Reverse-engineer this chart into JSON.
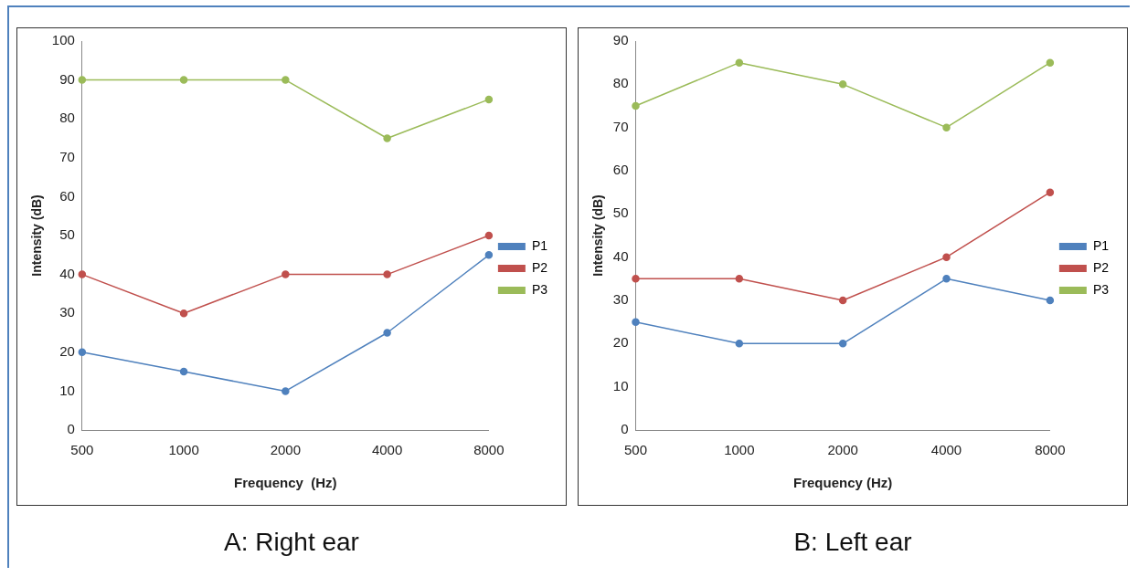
{
  "chart_data": [
    {
      "type": "line",
      "title": "A: Right ear",
      "xlabel": "Frequency  (Hz)",
      "ylabel": "Intensity (dB)",
      "categories": [
        "500",
        "1000",
        "2000",
        "4000",
        "8000"
      ],
      "series": [
        {
          "name": "P1",
          "color": "#4f81bd",
          "values": [
            20,
            15,
            10,
            25,
            45
          ]
        },
        {
          "name": "P2",
          "color": "#c0504d",
          "values": [
            40,
            30,
            40,
            40,
            50
          ]
        },
        {
          "name": "P3",
          "color": "#9bbb59",
          "values": [
            90,
            90,
            90,
            75,
            85
          ]
        }
      ],
      "ylim": [
        0,
        100
      ],
      "yticks": [
        0,
        10,
        20,
        30,
        40,
        50,
        60,
        70,
        80,
        90,
        100
      ],
      "grid": false,
      "legend": "right",
      "marker": "circle",
      "line_style": "solid"
    },
    {
      "type": "line",
      "title": "B: Left ear",
      "xlabel": "Frequency (Hz)",
      "ylabel": "Intensity (dB)",
      "categories": [
        "500",
        "1000",
        "2000",
        "4000",
        "8000"
      ],
      "series": [
        {
          "name": "P1",
          "color": "#4f81bd",
          "values": [
            25,
            20,
            20,
            35,
            30
          ]
        },
        {
          "name": "P2",
          "color": "#c0504d",
          "values": [
            35,
            35,
            30,
            40,
            55
          ]
        },
        {
          "name": "P3",
          "color": "#9bbb59",
          "values": [
            75,
            85,
            80,
            70,
            85
          ]
        }
      ],
      "ylim": [
        0,
        90
      ],
      "yticks": [
        0,
        10,
        20,
        30,
        40,
        50,
        60,
        70,
        80,
        90
      ],
      "grid": false,
      "legend": "right",
      "marker": "circle",
      "line_style": "solid"
    }
  ]
}
